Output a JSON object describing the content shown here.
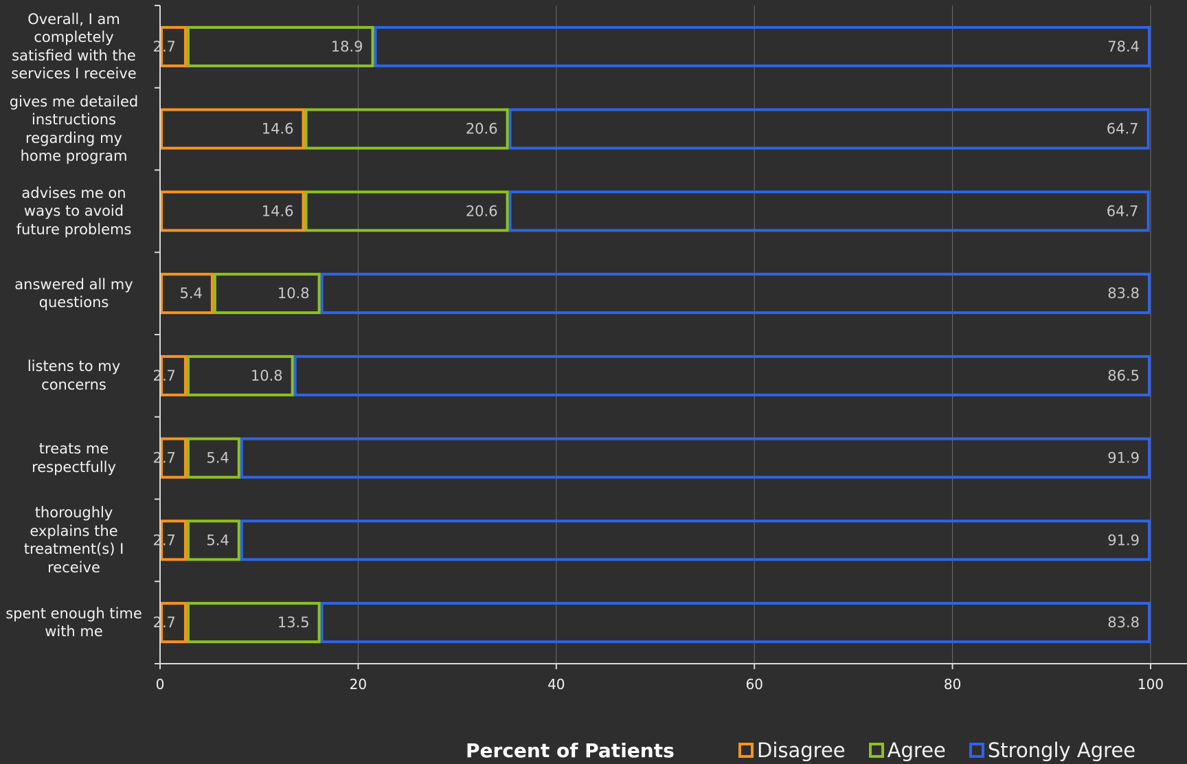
{
  "chart_data": {
    "type": "bar",
    "orientation": "horizontal",
    "stacked": true,
    "categories": [
      "Overall, I am completely satisfied with the services I receive",
      "gives me detailed instructions regarding my home program",
      "advises me on ways to avoid future problems",
      "answered all my questions",
      "listens to my concerns",
      "treats me respectfully",
      "thoroughly explains the treatment(s) I receive",
      "spent enough time with me"
    ],
    "series": [
      {
        "name": "Disagree",
        "color": "#f7941d",
        "values": [
          2.7,
          14.6,
          14.6,
          5.4,
          2.7,
          2.7,
          2.7,
          2.7
        ]
      },
      {
        "name": "Agree",
        "color": "#8dc21f",
        "values": [
          18.9,
          20.6,
          20.6,
          10.8,
          10.8,
          5.4,
          5.4,
          13.5
        ]
      },
      {
        "name": "Strongly Agree",
        "color": "#2e64e8",
        "values": [
          78.4,
          64.7,
          64.7,
          83.8,
          86.5,
          91.9,
          91.9,
          83.8
        ]
      }
    ],
    "xlabel": "Percent of Patients",
    "xlim": [
      0,
      100
    ],
    "xticks": [
      0,
      20,
      40,
      60,
      80,
      100
    ],
    "grid": true,
    "legend": "bottom"
  },
  "category_label_lines": [
    [
      "Overall, I am",
      "completely",
      "satisfied with the",
      "services I receive"
    ],
    [
      "gives me detailed",
      "instructions",
      "regarding my",
      "home program"
    ],
    [
      "advises me on",
      "ways to avoid",
      "future problems"
    ],
    [
      "answered all my",
      "questions"
    ],
    [
      "listens to my",
      "concerns"
    ],
    [
      "treats me",
      "respectfully"
    ],
    [
      "thoroughly",
      "explains the",
      "treatment(s) I",
      "receive"
    ],
    [
      "spent enough time",
      "with me"
    ]
  ],
  "colors": {
    "background": "#2e2e2e",
    "grid": "#6e6e6e",
    "axis": "#d9d9d9",
    "value_label": "#c8c8c8",
    "text": "#f2f2f2"
  }
}
